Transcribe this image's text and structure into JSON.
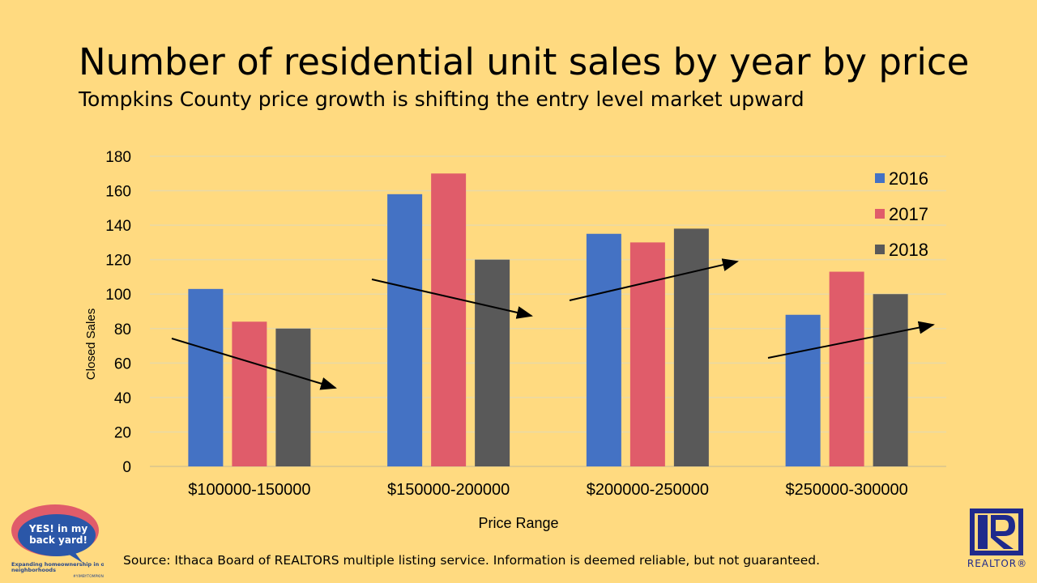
{
  "slide": {
    "title": "Number of residential unit sales by year by price",
    "subtitle": "Tompkins County price growth is shifting the entry level market upward",
    "source": "Source: Ithaca Board of REALTORS multiple listing service. Information is deemed reliable, but not guaranteed.",
    "logo_left_text": [
      "YES! in my",
      "back yard!",
      "Expanding homeownership in our neighborhoods",
      "#YIMBYTOMPKINS"
    ],
    "logo_right_text": "REALTOR®",
    "background": "#FFDA80"
  },
  "chart_data": {
    "type": "bar",
    "title": "",
    "xlabel": "Price Range",
    "ylabel": "Closed Sales",
    "ylim": [
      0,
      180
    ],
    "yticks": [
      0,
      20,
      40,
      60,
      80,
      100,
      120,
      140,
      160,
      180
    ],
    "grid": true,
    "legend_position": "top-right",
    "categories": [
      "$100000-150000",
      "$150000-200000",
      "$200000-250000",
      "$250000-300000"
    ],
    "series": [
      {
        "name": "2016",
        "color": "#4472C4",
        "values": [
          103,
          158,
          135,
          88
        ]
      },
      {
        "name": "2017",
        "color": "#E05C6A",
        "values": [
          84,
          170,
          130,
          113
        ]
      },
      {
        "name": "2018",
        "color": "#595959",
        "values": [
          80,
          120,
          138,
          100
        ]
      }
    ],
    "annotations": [
      "trend-arrow-down",
      "trend-arrow-down",
      "trend-arrow-up",
      "trend-arrow-up"
    ]
  }
}
